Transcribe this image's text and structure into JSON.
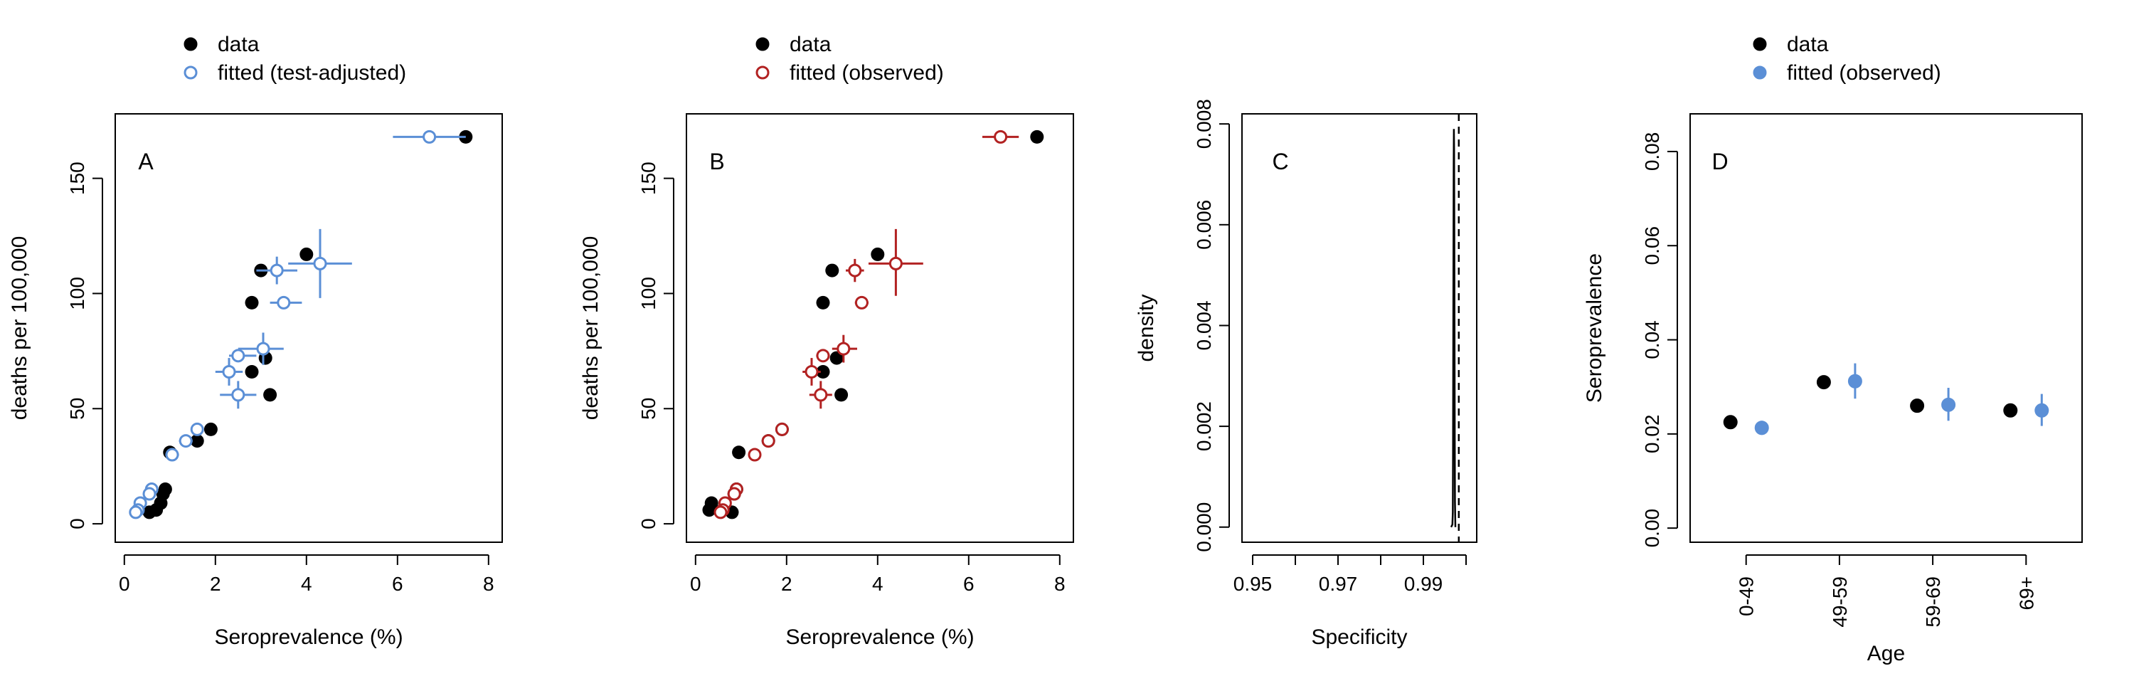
{
  "chart_data": [
    {
      "panel": "A",
      "type": "scatter",
      "xlabel": "Seroprevalence (%)",
      "ylabel": "deaths per 100,000",
      "xlim": [
        -0.2,
        8.3
      ],
      "ylim": [
        -8,
        178
      ],
      "xticks": [
        0,
        2,
        4,
        6,
        8
      ],
      "yticks": [
        0,
        50,
        100,
        150
      ],
      "legend": {
        "position": "top-left-outside",
        "entries": [
          {
            "label": "data",
            "marker": "filled-circle",
            "color": "#000000"
          },
          {
            "label": "fitted (test-adjusted)",
            "marker": "open-circle",
            "color": "#5b8fd6"
          }
        ]
      },
      "series": [
        {
          "name": "data",
          "marker": "filled-circle",
          "color": "#000000",
          "points": [
            [
              7.5,
              168
            ],
            [
              4.0,
              117
            ],
            [
              3.0,
              110
            ],
            [
              3.1,
              72
            ],
            [
              3.2,
              56
            ],
            [
              2.8,
              96
            ],
            [
              2.8,
              66
            ],
            [
              1.9,
              41
            ],
            [
              1.6,
              36
            ],
            [
              1.0,
              31
            ],
            [
              0.9,
              15
            ],
            [
              0.85,
              13
            ],
            [
              0.8,
              9
            ],
            [
              0.7,
              6
            ],
            [
              0.55,
              5
            ]
          ]
        },
        {
          "name": "fitted (test-adjusted)",
          "marker": "open-circle",
          "color": "#5b8fd6",
          "points": [
            {
              "x": 6.7,
              "y": 168,
              "xerr": [
                5.9,
                7.5
              ],
              "yerr": [
                166,
                170
              ]
            },
            {
              "x": 4.3,
              "y": 113,
              "xerr": [
                3.6,
                5.0
              ],
              "yerr": [
                98,
                128
              ]
            },
            {
              "x": 3.35,
              "y": 110,
              "xerr": [
                2.9,
                3.8
              ],
              "yerr": [
                104,
                116
              ]
            },
            {
              "x": 3.5,
              "y": 96,
              "xerr": [
                3.2,
                3.9
              ],
              "yerr": [
                94,
                98
              ]
            },
            {
              "x": 3.05,
              "y": 76,
              "xerr": [
                2.5,
                3.5
              ],
              "yerr": [
                69,
                83
              ]
            },
            {
              "x": 2.5,
              "y": 73,
              "xerr": [
                2.3,
                2.9
              ],
              "yerr": [
                71,
                75
              ]
            },
            {
              "x": 2.3,
              "y": 66,
              "xerr": [
                2.0,
                2.6
              ],
              "yerr": [
                60,
                72
              ]
            },
            {
              "x": 2.5,
              "y": 56,
              "xerr": [
                2.1,
                2.9
              ],
              "yerr": [
                50,
                62
              ]
            },
            {
              "x": 1.6,
              "y": 41,
              "xerr": [
                1.5,
                1.7
              ],
              "yerr": [
                40,
                42
              ]
            },
            {
              "x": 1.35,
              "y": 36,
              "xerr": [
                1.2,
                1.5
              ],
              "yerr": [
                35,
                37
              ]
            },
            {
              "x": 1.05,
              "y": 30,
              "xerr": [
                0.9,
                1.2
              ],
              "yerr": [
                28,
                32
              ]
            },
            {
              "x": 0.6,
              "y": 15,
              "xerr": [
                0.5,
                0.7
              ],
              "yerr": [
                14,
                16
              ]
            },
            {
              "x": 0.55,
              "y": 13,
              "xerr": [
                0.5,
                0.6
              ],
              "yerr": [
                12,
                14
              ]
            },
            {
              "x": 0.35,
              "y": 9,
              "xerr": [
                0.3,
                0.4
              ],
              "yerr": [
                8,
                10
              ]
            },
            {
              "x": 0.3,
              "y": 6,
              "xerr": [
                0.25,
                0.35
              ],
              "yerr": [
                5,
                7
              ]
            },
            {
              "x": 0.25,
              "y": 5,
              "xerr": [
                0.2,
                0.3
              ],
              "yerr": [
                4,
                6
              ]
            }
          ]
        }
      ]
    },
    {
      "panel": "B",
      "type": "scatter",
      "xlabel": "Seroprevalence (%)",
      "ylabel": "deaths per 100,000",
      "xlim": [
        -0.2,
        8.3
      ],
      "ylim": [
        -8,
        178
      ],
      "xticks": [
        0,
        2,
        4,
        6,
        8
      ],
      "yticks": [
        0,
        50,
        100,
        150
      ],
      "legend": {
        "position": "top-left-outside",
        "entries": [
          {
            "label": "data",
            "marker": "filled-circle",
            "color": "#000000"
          },
          {
            "label": "fitted (observed)",
            "marker": "open-circle",
            "color": "#b22222"
          }
        ]
      },
      "series": [
        {
          "name": "data",
          "marker": "filled-circle",
          "color": "#000000",
          "points": [
            [
              7.5,
              168
            ],
            [
              4.0,
              117
            ],
            [
              3.0,
              110
            ],
            [
              3.1,
              72
            ],
            [
              3.2,
              56
            ],
            [
              2.8,
              96
            ],
            [
              2.8,
              66
            ],
            [
              1.9,
              41
            ],
            [
              1.6,
              36
            ],
            [
              0.95,
              31
            ],
            [
              0.9,
              15
            ],
            [
              0.85,
              13
            ],
            [
              0.35,
              9
            ],
            [
              0.3,
              6
            ],
            [
              0.6,
              6
            ],
            [
              0.8,
              5
            ]
          ]
        },
        {
          "name": "fitted (observed)",
          "marker": "open-circle",
          "color": "#b22222",
          "points": [
            {
              "x": 6.7,
              "y": 168,
              "xerr": [
                6.3,
                7.1
              ],
              "yerr": [
                166,
                170
              ]
            },
            {
              "x": 4.4,
              "y": 113,
              "xerr": [
                3.8,
                5.0
              ],
              "yerr": [
                99,
                128
              ]
            },
            {
              "x": 3.5,
              "y": 110,
              "xerr": [
                3.3,
                3.7
              ],
              "yerr": [
                105,
                115
              ]
            },
            {
              "x": 3.65,
              "y": 96,
              "xerr": [
                3.5,
                3.8
              ],
              "yerr": [
                94,
                98
              ]
            },
            {
              "x": 3.25,
              "y": 76,
              "xerr": [
                3.0,
                3.55
              ],
              "yerr": [
                70,
                82
              ]
            },
            {
              "x": 2.8,
              "y": 73,
              "xerr": [
                2.65,
                2.95
              ],
              "yerr": [
                71,
                75
              ]
            },
            {
              "x": 2.55,
              "y": 66,
              "xerr": [
                2.35,
                2.75
              ],
              "yerr": [
                60,
                72
              ]
            },
            {
              "x": 2.75,
              "y": 56,
              "xerr": [
                2.5,
                3.0
              ],
              "yerr": [
                50,
                62
              ]
            },
            {
              "x": 1.9,
              "y": 41,
              "xerr": [
                1.8,
                2.0
              ],
              "yerr": [
                40,
                42
              ]
            },
            {
              "x": 1.6,
              "y": 36,
              "xerr": [
                1.5,
                1.7
              ],
              "yerr": [
                35,
                37
              ]
            },
            {
              "x": 1.3,
              "y": 30,
              "xerr": [
                1.2,
                1.4
              ],
              "yerr": [
                28,
                32
              ]
            },
            {
              "x": 0.9,
              "y": 15,
              "xerr": [
                0.85,
                0.95
              ],
              "yerr": [
                14,
                16
              ]
            },
            {
              "x": 0.85,
              "y": 13,
              "xerr": [
                0.8,
                0.9
              ],
              "yerr": [
                12,
                14
              ]
            },
            {
              "x": 0.65,
              "y": 9,
              "xerr": [
                0.6,
                0.7
              ],
              "yerr": [
                8,
                10
              ]
            },
            {
              "x": 0.6,
              "y": 6,
              "xerr": [
                0.55,
                0.65
              ],
              "yerr": [
                5,
                7
              ]
            },
            {
              "x": 0.55,
              "y": 5,
              "xerr": [
                0.5,
                0.6
              ],
              "yerr": [
                4,
                6
              ]
            }
          ]
        }
      ]
    },
    {
      "panel": "C",
      "type": "line",
      "xlabel": "Specificity",
      "ylabel": "density",
      "xlim": [
        0.9475,
        1.0025
      ],
      "ylim": [
        -0.0003,
        0.0082
      ],
      "xticks": [
        0.95,
        0.96,
        0.97,
        0.98,
        0.99,
        1.0
      ],
      "xtick_labels": [
        "0.95",
        "",
        "0.97",
        "",
        "0.99",
        ""
      ],
      "yticks": [
        0.0,
        0.002,
        0.004,
        0.006,
        0.008
      ],
      "ytick_labels": [
        "0.000",
        "0.002",
        "0.004",
        "0.006",
        "0.008"
      ],
      "series": [
        {
          "name": "density",
          "style": "solid",
          "color": "#000000",
          "points": [
            [
              0.9965,
              0.0
            ],
            [
              0.9968,
              5e-05
            ],
            [
              0.9969,
              0.0003
            ],
            [
              0.99695,
              0.0015
            ],
            [
              0.997,
              0.0035
            ],
            [
              0.99705,
              0.0055
            ],
            [
              0.9971,
              0.0072
            ],
            [
              0.99715,
              0.0079
            ],
            [
              0.9972,
              0.0075
            ],
            [
              0.99725,
              0.006
            ],
            [
              0.9973,
              0.0038
            ],
            [
              0.99735,
              0.0018
            ],
            [
              0.9974,
              0.0005
            ],
            [
              0.9975,
              0.0
            ]
          ]
        }
      ],
      "vline": {
        "x": 0.9983,
        "style": "dashed",
        "color": "#000000"
      }
    },
    {
      "panel": "D",
      "type": "scatter",
      "xlabel": "Age",
      "ylabel": "Seroprevalence",
      "categories": [
        "0-49",
        "49-59",
        "59-69",
        "69+"
      ],
      "ylim": [
        -0.003,
        0.088
      ],
      "yticks": [
        0.0,
        0.02,
        0.04,
        0.06,
        0.08
      ],
      "ytick_labels": [
        "0.00",
        "0.02",
        "0.04",
        "0.06",
        "0.08"
      ],
      "legend": {
        "position": "top-left-outside",
        "entries": [
          {
            "label": "data",
            "marker": "filled-circle",
            "color": "#000000"
          },
          {
            "label": "fitted (observed)",
            "marker": "filled-circle",
            "color": "#5b8fd6"
          }
        ]
      },
      "series": [
        {
          "name": "data",
          "marker": "filled-circle",
          "color": "#000000",
          "values": [
            0.0225,
            0.031,
            0.026,
            0.025
          ]
        },
        {
          "name": "fitted (observed)",
          "marker": "filled-circle",
          "color": "#5b8fd6",
          "values": [
            0.0213,
            0.0312,
            0.0262,
            0.025
          ],
          "lower": [
            0.0198,
            0.0275,
            0.0228,
            0.0217
          ],
          "upper": [
            0.0228,
            0.035,
            0.0298,
            0.0285
          ]
        }
      ]
    }
  ]
}
